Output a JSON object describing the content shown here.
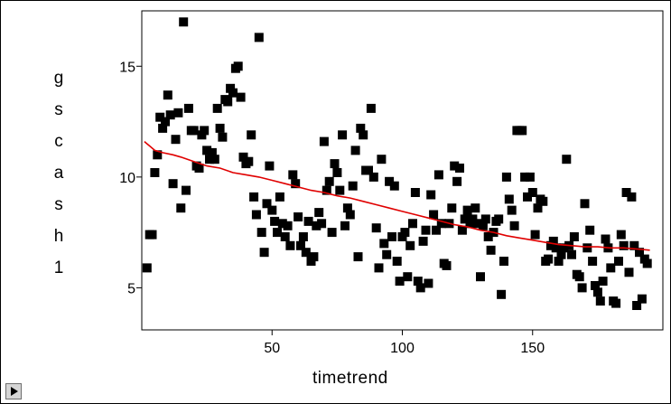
{
  "chart_data": {
    "type": "scatter",
    "xlabel": "timetrend",
    "ylabel": "gscash1",
    "xlim": [
      0,
      200
    ],
    "ylim": [
      3.1,
      17.5
    ],
    "x_ticks": [
      50,
      100,
      150
    ],
    "y_ticks": [
      5,
      10,
      15
    ],
    "grid": false,
    "marker_color": "#000000",
    "trend_color": "#e00000",
    "points": [
      [
        2,
        5.9
      ],
      [
        3,
        7.4
      ],
      [
        4,
        7.4
      ],
      [
        5,
        10.2
      ],
      [
        6,
        11
      ],
      [
        7,
        12.7
      ],
      [
        8,
        12.2
      ],
      [
        9,
        12.5
      ],
      [
        10,
        13.7
      ],
      [
        11,
        12.8
      ],
      [
        12,
        9.7
      ],
      [
        13,
        11.7
      ],
      [
        14,
        12.9
      ],
      [
        15,
        8.6
      ],
      [
        16,
        17
      ],
      [
        17,
        9.4
      ],
      [
        18,
        13.1
      ],
      [
        19,
        12.1
      ],
      [
        20,
        12.1
      ],
      [
        21,
        10.5
      ],
      [
        22,
        10.4
      ],
      [
        23,
        11.9
      ],
      [
        24,
        12.1
      ],
      [
        25,
        11.2
      ],
      [
        26,
        10.8
      ],
      [
        27,
        11.1
      ],
      [
        28,
        10.8
      ],
      [
        29,
        13.1
      ],
      [
        30,
        12.2
      ],
      [
        31,
        11.8
      ],
      [
        32,
        13.5
      ],
      [
        33,
        13.4
      ],
      [
        34,
        14
      ],
      [
        35,
        13.8
      ],
      [
        36,
        14.9
      ],
      [
        37,
        15
      ],
      [
        38,
        13.6
      ],
      [
        39,
        10.9
      ],
      [
        40,
        10.6
      ],
      [
        41,
        10.7
      ],
      [
        42,
        11.9
      ],
      [
        43,
        9.1
      ],
      [
        44,
        8.3
      ],
      [
        45,
        16.3
      ],
      [
        46,
        7.5
      ],
      [
        47,
        6.6
      ],
      [
        48,
        8.8
      ],
      [
        49,
        10.5
      ],
      [
        50,
        8.5
      ],
      [
        51,
        8
      ],
      [
        52,
        7.5
      ],
      [
        53,
        9.1
      ],
      [
        54,
        7.9
      ],
      [
        55,
        7.3
      ],
      [
        56,
        7.8
      ],
      [
        57,
        6.9
      ],
      [
        58,
        10.1
      ],
      [
        59,
        9.7
      ],
      [
        60,
        8.2
      ],
      [
        61,
        6.9
      ],
      [
        62,
        7.3
      ],
      [
        63,
        6.6
      ],
      [
        64,
        8
      ],
      [
        65,
        6.2
      ],
      [
        66,
        6.4
      ],
      [
        67,
        7.8
      ],
      [
        68,
        8.4
      ],
      [
        69,
        7.9
      ],
      [
        70,
        11.6
      ],
      [
        71,
        9.4
      ],
      [
        72,
        9.8
      ],
      [
        73,
        7.5
      ],
      [
        74,
        10.6
      ],
      [
        75,
        10.2
      ],
      [
        76,
        9.4
      ],
      [
        77,
        11.9
      ],
      [
        78,
        7.8
      ],
      [
        79,
        8.6
      ],
      [
        80,
        8.3
      ],
      [
        81,
        9.6
      ],
      [
        82,
        11.2
      ],
      [
        83,
        6.4
      ],
      [
        84,
        12.2
      ],
      [
        85,
        11.9
      ],
      [
        86,
        10.3
      ],
      [
        87,
        10.3
      ],
      [
        88,
        13.1
      ],
      [
        89,
        10
      ],
      [
        90,
        7.7
      ],
      [
        91,
        5.9
      ],
      [
        92,
        10.8
      ],
      [
        93,
        7
      ],
      [
        94,
        6.5
      ],
      [
        95,
        9.8
      ],
      [
        96,
        7.3
      ],
      [
        97,
        9.6
      ],
      [
        98,
        6.2
      ],
      [
        99,
        5.3
      ],
      [
        100,
        7.3
      ],
      [
        101,
        7.5
      ],
      [
        102,
        5.5
      ],
      [
        103,
        6.9
      ],
      [
        104,
        7.9
      ],
      [
        105,
        9.3
      ],
      [
        106,
        5.3
      ],
      [
        107,
        5
      ],
      [
        108,
        7.1
      ],
      [
        109,
        7.6
      ],
      [
        110,
        5.2
      ],
      [
        111,
        9.2
      ],
      [
        112,
        8.3
      ],
      [
        113,
        7.6
      ],
      [
        114,
        10.1
      ],
      [
        115,
        7.9
      ],
      [
        116,
        6.1
      ],
      [
        117,
        6
      ],
      [
        118,
        7.9
      ],
      [
        119,
        8.6
      ],
      [
        120,
        10.5
      ],
      [
        121,
        9.8
      ],
      [
        122,
        10.4
      ],
      [
        123,
        7.6
      ],
      [
        124,
        8.1
      ],
      [
        125,
        8.5
      ],
      [
        126,
        7.9
      ],
      [
        127,
        8.1
      ],
      [
        128,
        8.6
      ],
      [
        129,
        7.9
      ],
      [
        130,
        5.5
      ],
      [
        131,
        7.8
      ],
      [
        132,
        8.1
      ],
      [
        133,
        7.3
      ],
      [
        134,
        6.7
      ],
      [
        135,
        7.5
      ],
      [
        136,
        8
      ],
      [
        137,
        8.1
      ],
      [
        138,
        4.7
      ],
      [
        139,
        6.2
      ],
      [
        140,
        10
      ],
      [
        141,
        9
      ],
      [
        142,
        8.5
      ],
      [
        143,
        7.8
      ],
      [
        144,
        12.1
      ],
      [
        145,
        12.1
      ],
      [
        146,
        12.1
      ],
      [
        147,
        10
      ],
      [
        148,
        9.1
      ],
      [
        149,
        10
      ],
      [
        150,
        9.3
      ],
      [
        151,
        7.4
      ],
      [
        152,
        8.6
      ],
      [
        153,
        9
      ],
      [
        154,
        8.9
      ],
      [
        155,
        6.2
      ],
      [
        156,
        6.3
      ],
      [
        157,
        6.9
      ],
      [
        158,
        7.1
      ],
      [
        159,
        6.8
      ],
      [
        160,
        6.2
      ],
      [
        161,
        6.5
      ],
      [
        162,
        6.8
      ],
      [
        163,
        10.8
      ],
      [
        164,
        6.9
      ],
      [
        165,
        6.5
      ],
      [
        166,
        7.3
      ],
      [
        167,
        5.6
      ],
      [
        168,
        5.5
      ],
      [
        169,
        5
      ],
      [
        170,
        8.8
      ],
      [
        171,
        6.8
      ],
      [
        172,
        7.6
      ],
      [
        173,
        6.2
      ],
      [
        174,
        5.1
      ],
      [
        175,
        4.8
      ],
      [
        176,
        4.4
      ],
      [
        177,
        5.3
      ],
      [
        178,
        7.2
      ],
      [
        179,
        6.8
      ],
      [
        180,
        5.9
      ],
      [
        181,
        4.4
      ],
      [
        182,
        4.3
      ],
      [
        183,
        6.2
      ],
      [
        184,
        7.4
      ],
      [
        185,
        6.9
      ],
      [
        186,
        9.3
      ],
      [
        187,
        5.7
      ],
      [
        188,
        9.1
      ],
      [
        189,
        6.9
      ],
      [
        190,
        4.2
      ],
      [
        191,
        6.6
      ],
      [
        192,
        4.5
      ],
      [
        193,
        6.3
      ],
      [
        194,
        6.1
      ]
    ],
    "trend_line": [
      [
        1,
        11.6
      ],
      [
        2,
        11.5
      ],
      [
        3,
        11.4
      ],
      [
        5,
        11.2
      ],
      [
        8,
        11.1
      ],
      [
        12,
        11
      ],
      [
        15,
        10.9
      ],
      [
        20,
        10.7
      ],
      [
        25,
        10.5
      ],
      [
        30,
        10.4
      ],
      [
        35,
        10.2
      ],
      [
        40,
        10.1
      ],
      [
        45,
        10
      ],
      [
        50,
        9.85
      ],
      [
        55,
        9.7
      ],
      [
        60,
        9.55
      ],
      [
        65,
        9.4
      ],
      [
        70,
        9.3
      ],
      [
        75,
        9.15
      ],
      [
        80,
        9.05
      ],
      [
        85,
        8.9
      ],
      [
        90,
        8.75
      ],
      [
        95,
        8.6
      ],
      [
        100,
        8.45
      ],
      [
        105,
        8.3
      ],
      [
        110,
        8.15
      ],
      [
        115,
        8
      ],
      [
        120,
        7.85
      ],
      [
        125,
        7.75
      ],
      [
        130,
        7.6
      ],
      [
        135,
        7.5
      ],
      [
        140,
        7.35
      ],
      [
        145,
        7.25
      ],
      [
        150,
        7.15
      ],
      [
        155,
        7.05
      ],
      [
        160,
        6.95
      ],
      [
        165,
        6.9
      ],
      [
        170,
        6.85
      ],
      [
        175,
        6.85
      ],
      [
        180,
        6.8
      ],
      [
        185,
        6.8
      ],
      [
        190,
        6.75
      ],
      [
        195,
        6.7
      ]
    ]
  }
}
